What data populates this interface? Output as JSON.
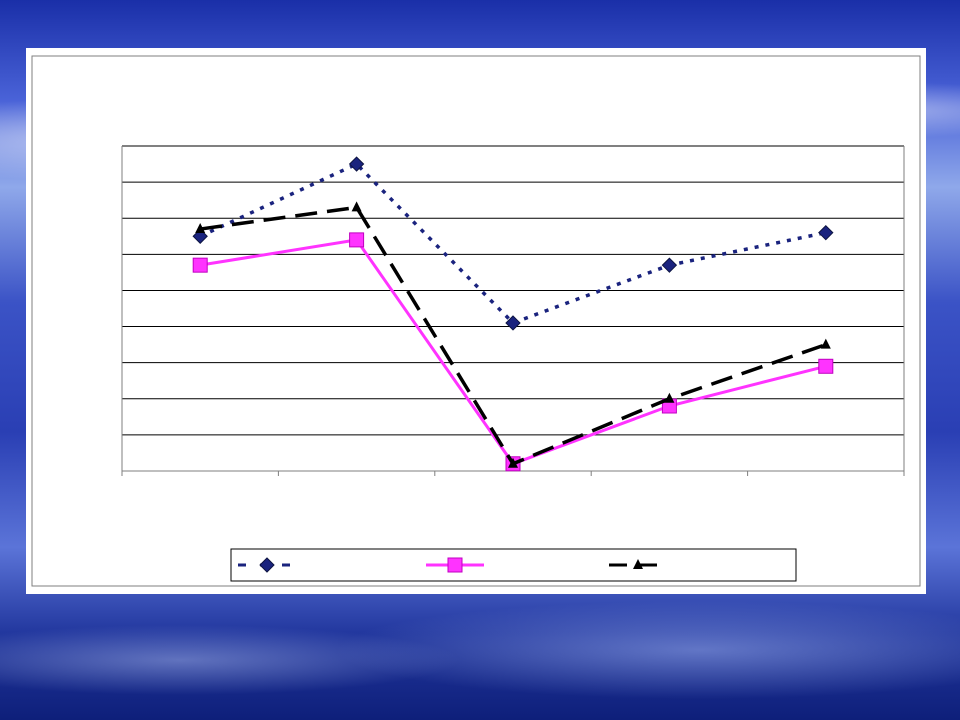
{
  "chart_data": {
    "type": "line",
    "title": "",
    "xlabel": "",
    "ylabel": "",
    "categories": [
      "",
      "",
      "",
      "",
      ""
    ],
    "ylim": [
      0,
      9
    ],
    "grid": true,
    "legend": "bottom",
    "series": [
      {
        "name": "",
        "values": [
          6.5,
          8.5,
          4.1,
          5.7,
          6.6
        ],
        "color": "#1a237e",
        "marker": "diamond",
        "dash": "dotted"
      },
      {
        "name": "",
        "values": [
          5.7,
          6.4,
          0.2,
          1.8,
          2.9
        ],
        "color": "#ff33ff",
        "marker": "square",
        "dash": "solid"
      },
      {
        "name": "",
        "values": [
          6.7,
          7.3,
          0.2,
          2.0,
          3.5
        ],
        "color": "#000000",
        "marker": "triangle",
        "dash": "dashed"
      }
    ]
  }
}
